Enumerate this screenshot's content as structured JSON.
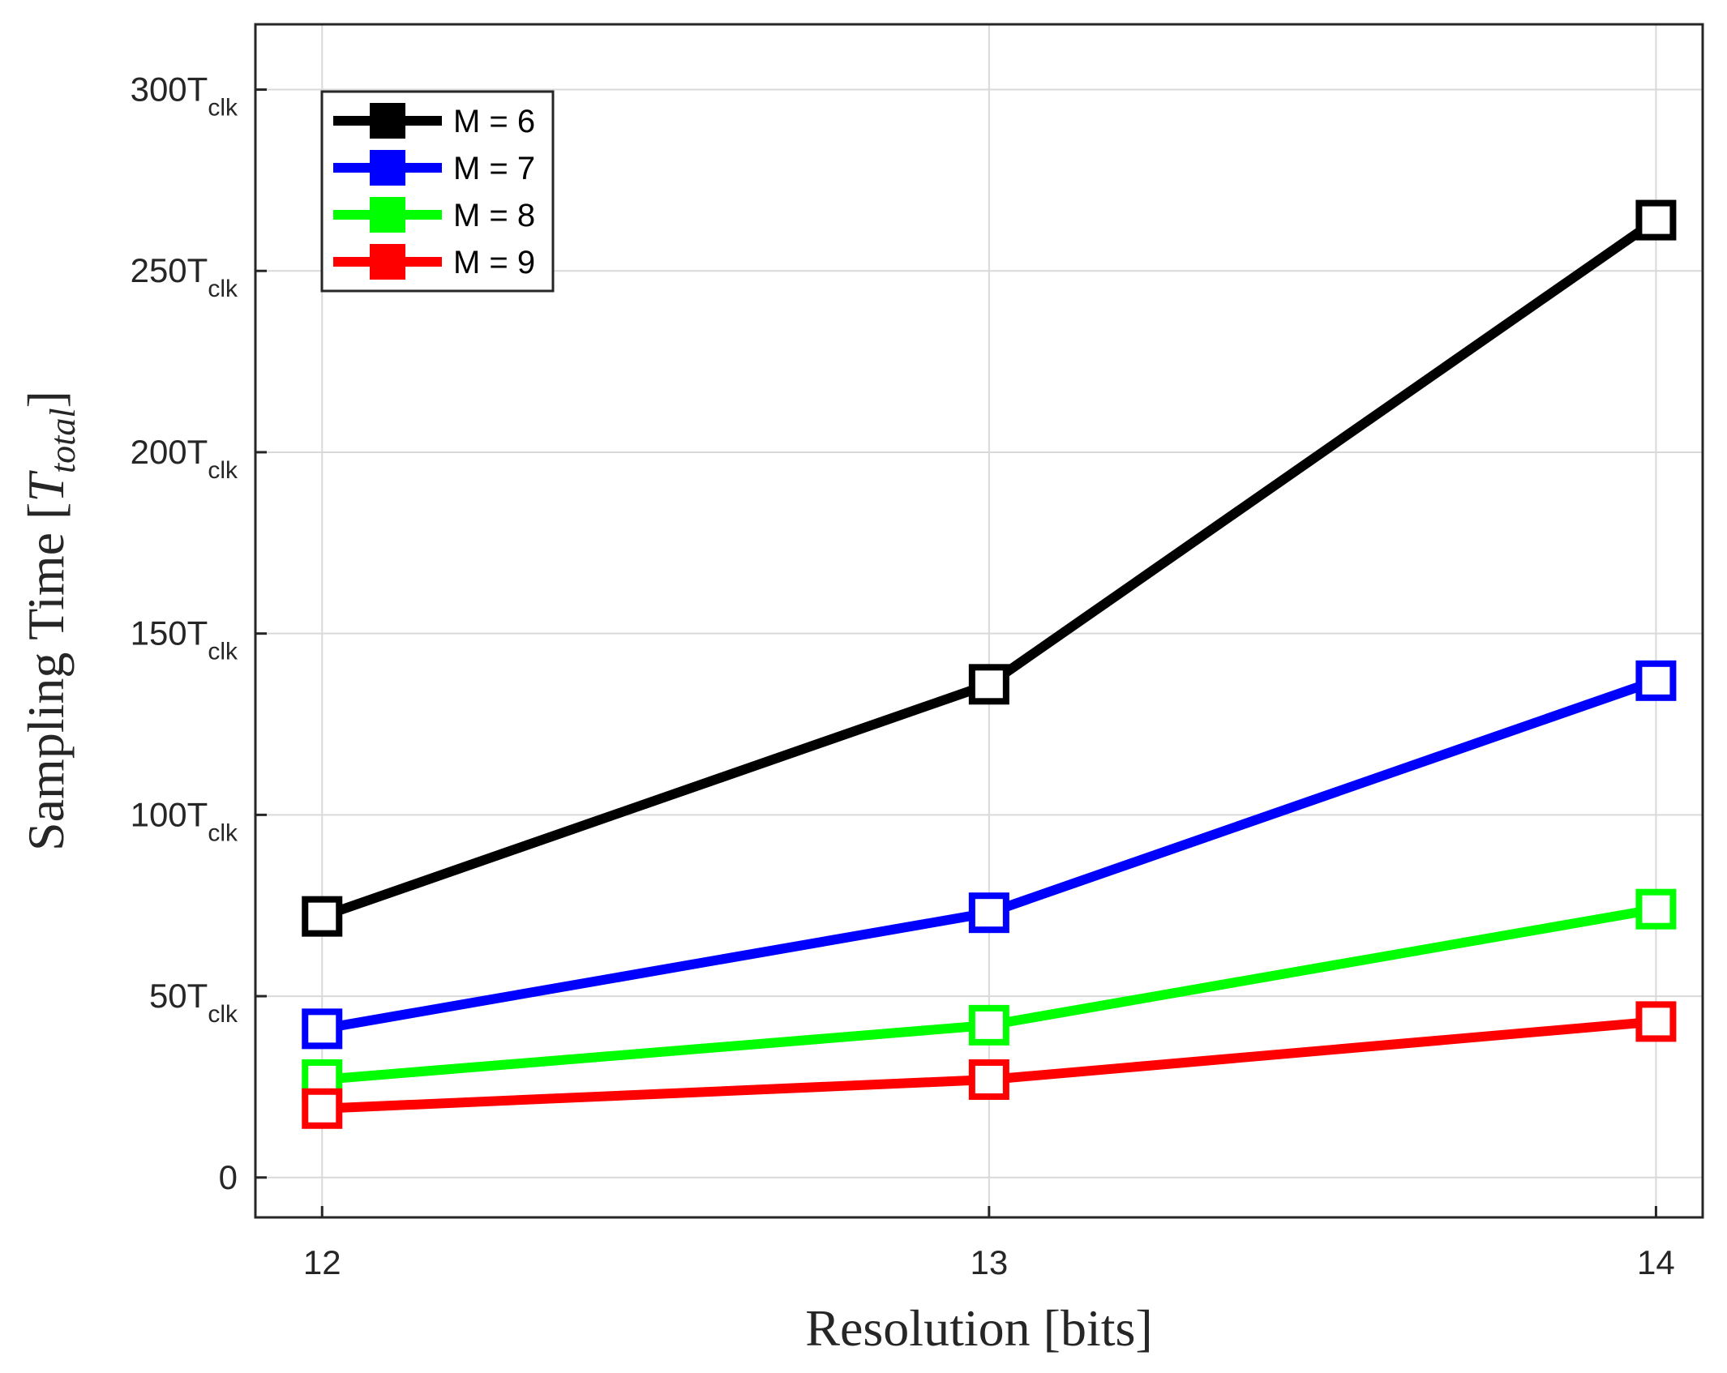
{
  "chart_data": {
    "type": "line",
    "title": "",
    "xlabel": "Resolution [bits]",
    "ylabel_prefix": "Sampling Time [",
    "ylabel_var": "T",
    "ylabel_sub": "total",
    "ylabel_suffix": "]",
    "x": [
      12,
      13,
      14
    ],
    "x_tick_labels": [
      "12",
      "13",
      "14"
    ],
    "xlim": [
      11.9,
      14.07
    ],
    "ylim": [
      -11,
      318
    ],
    "y_ticks": [
      {
        "value": 0,
        "main": "0",
        "sub": ""
      },
      {
        "value": 50,
        "main": "50T",
        "sub": "clk"
      },
      {
        "value": 100,
        "main": "100T",
        "sub": "clk"
      },
      {
        "value": 150,
        "main": "150T",
        "sub": "clk"
      },
      {
        "value": 200,
        "main": "200T",
        "sub": "clk"
      },
      {
        "value": 250,
        "main": "250T",
        "sub": "clk"
      },
      {
        "value": 300,
        "main": "300T",
        "sub": "clk"
      }
    ],
    "grid": true,
    "legend_position": "top-left",
    "series": [
      {
        "name": "M = 6",
        "color": "#000000",
        "values": [
          72,
          136,
          264
        ]
      },
      {
        "name": "M = 7",
        "color": "#0000ff",
        "values": [
          41,
          73,
          137
        ]
      },
      {
        "name": "M = 8",
        "color": "#00ff00",
        "values": [
          27,
          42,
          74
        ]
      },
      {
        "name": "M = 9",
        "color": "#ff0000",
        "values": [
          19,
          27,
          43
        ]
      }
    ]
  }
}
